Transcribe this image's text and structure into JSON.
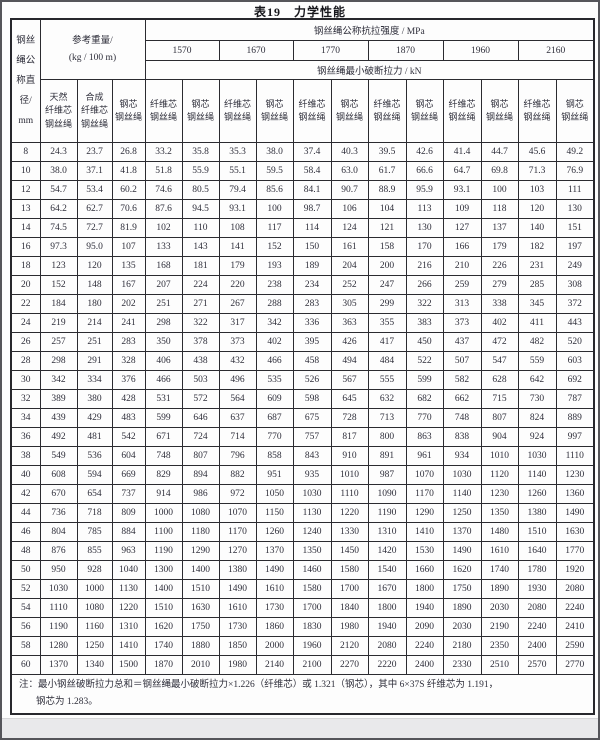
{
  "title": "表19　力学性能",
  "colors": {
    "page_background": "#fdfdfd",
    "table_border": "#2b2b30",
    "text": "#2e2e3a",
    "bottom_strip": "#e9e9eb"
  },
  "table": {
    "diameter_header": "钢丝\n绳公\n称直\n径/\nmm",
    "weight_header": "参考重量/\n(kg / 100 m)",
    "strength_header": "钢丝绳公称抗拉强度 / MPa",
    "force_header": "钢丝绳最小破断拉力 / kN",
    "grades": [
      "1570",
      "1670",
      "1770",
      "1870",
      "1960",
      "2160"
    ],
    "sub_headers": {
      "natural": "天然\n纤维芯\n钢丝绳",
      "synthetic": "合成\n纤维芯\n钢丝绳",
      "steel_weight": "钢芯\n钢丝绳",
      "fiber_core": "纤维芯\n钢丝绳",
      "steel_core": "钢芯\n钢丝绳"
    },
    "rows": [
      {
        "diameter": "8",
        "values": [
          "24.3",
          "23.7",
          "26.8",
          "33.2",
          "35.8",
          "35.3",
          "38.0",
          "37.4",
          "40.3",
          "39.5",
          "42.6",
          "41.4",
          "44.7",
          "45.6",
          "49.2"
        ]
      },
      {
        "diameter": "10",
        "values": [
          "38.0",
          "37.1",
          "41.8",
          "51.8",
          "55.9",
          "55.1",
          "59.5",
          "58.4",
          "63.0",
          "61.7",
          "66.6",
          "64.7",
          "69.8",
          "71.3",
          "76.9"
        ]
      },
      {
        "diameter": "12",
        "values": [
          "54.7",
          "53.4",
          "60.2",
          "74.6",
          "80.5",
          "79.4",
          "85.6",
          "84.1",
          "90.7",
          "88.9",
          "95.9",
          "93.1",
          "100",
          "103",
          "111"
        ]
      },
      {
        "diameter": "13",
        "values": [
          "64.2",
          "62.7",
          "70.6",
          "87.6",
          "94.5",
          "93.1",
          "100",
          "98.7",
          "106",
          "104",
          "113",
          "109",
          "118",
          "120",
          "130"
        ]
      },
      {
        "diameter": "14",
        "values": [
          "74.5",
          "72.7",
          "81.9",
          "102",
          "110",
          "108",
          "117",
          "114",
          "124",
          "121",
          "130",
          "127",
          "137",
          "140",
          "151"
        ]
      },
      {
        "diameter": "16",
        "values": [
          "97.3",
          "95.0",
          "107",
          "133",
          "143",
          "141",
          "152",
          "150",
          "161",
          "158",
          "170",
          "166",
          "179",
          "182",
          "197"
        ]
      },
      {
        "diameter": "18",
        "values": [
          "123",
          "120",
          "135",
          "168",
          "181",
          "179",
          "193",
          "189",
          "204",
          "200",
          "216",
          "210",
          "226",
          "231",
          "249"
        ]
      },
      {
        "diameter": "20",
        "values": [
          "152",
          "148",
          "167",
          "207",
          "224",
          "220",
          "238",
          "234",
          "252",
          "247",
          "266",
          "259",
          "279",
          "285",
          "308"
        ]
      },
      {
        "diameter": "22",
        "values": [
          "184",
          "180",
          "202",
          "251",
          "271",
          "267",
          "288",
          "283",
          "305",
          "299",
          "322",
          "313",
          "338",
          "345",
          "372"
        ]
      },
      {
        "diameter": "24",
        "values": [
          "219",
          "214",
          "241",
          "298",
          "322",
          "317",
          "342",
          "336",
          "363",
          "355",
          "383",
          "373",
          "402",
          "411",
          "443"
        ]
      },
      {
        "diameter": "26",
        "values": [
          "257",
          "251",
          "283",
          "350",
          "378",
          "373",
          "402",
          "395",
          "426",
          "417",
          "450",
          "437",
          "472",
          "482",
          "520"
        ]
      },
      {
        "diameter": "28",
        "values": [
          "298",
          "291",
          "328",
          "406",
          "438",
          "432",
          "466",
          "458",
          "494",
          "484",
          "522",
          "507",
          "547",
          "559",
          "603"
        ]
      },
      {
        "diameter": "30",
        "values": [
          "342",
          "334",
          "376",
          "466",
          "503",
          "496",
          "535",
          "526",
          "567",
          "555",
          "599",
          "582",
          "628",
          "642",
          "692"
        ]
      },
      {
        "diameter": "32",
        "values": [
          "389",
          "380",
          "428",
          "531",
          "572",
          "564",
          "609",
          "598",
          "645",
          "632",
          "682",
          "662",
          "715",
          "730",
          "787"
        ]
      },
      {
        "diameter": "34",
        "values": [
          "439",
          "429",
          "483",
          "599",
          "646",
          "637",
          "687",
          "675",
          "728",
          "713",
          "770",
          "748",
          "807",
          "824",
          "889"
        ]
      },
      {
        "diameter": "36",
        "values": [
          "492",
          "481",
          "542",
          "671",
          "724",
          "714",
          "770",
          "757",
          "817",
          "800",
          "863",
          "838",
          "904",
          "924",
          "997"
        ]
      },
      {
        "diameter": "38",
        "values": [
          "549",
          "536",
          "604",
          "748",
          "807",
          "796",
          "858",
          "843",
          "910",
          "891",
          "961",
          "934",
          "1010",
          "1030",
          "1110"
        ]
      },
      {
        "diameter": "40",
        "values": [
          "608",
          "594",
          "669",
          "829",
          "894",
          "882",
          "951",
          "935",
          "1010",
          "987",
          "1070",
          "1030",
          "1120",
          "1140",
          "1230"
        ]
      },
      {
        "diameter": "42",
        "values": [
          "670",
          "654",
          "737",
          "914",
          "986",
          "972",
          "1050",
          "1030",
          "1110",
          "1090",
          "1170",
          "1140",
          "1230",
          "1260",
          "1360"
        ]
      },
      {
        "diameter": "44",
        "values": [
          "736",
          "718",
          "809",
          "1000",
          "1080",
          "1070",
          "1150",
          "1130",
          "1220",
          "1190",
          "1290",
          "1250",
          "1350",
          "1380",
          "1490"
        ]
      },
      {
        "diameter": "46",
        "values": [
          "804",
          "785",
          "884",
          "1100",
          "1180",
          "1170",
          "1260",
          "1240",
          "1330",
          "1310",
          "1410",
          "1370",
          "1480",
          "1510",
          "1630"
        ]
      },
      {
        "diameter": "48",
        "values": [
          "876",
          "855",
          "963",
          "1190",
          "1290",
          "1270",
          "1370",
          "1350",
          "1450",
          "1420",
          "1530",
          "1490",
          "1610",
          "1640",
          "1770"
        ]
      },
      {
        "diameter": "50",
        "values": [
          "950",
          "928",
          "1040",
          "1300",
          "1400",
          "1380",
          "1490",
          "1460",
          "1580",
          "1540",
          "1660",
          "1620",
          "1740",
          "1780",
          "1920"
        ]
      },
      {
        "diameter": "52",
        "values": [
          "1030",
          "1000",
          "1130",
          "1400",
          "1510",
          "1490",
          "1610",
          "1580",
          "1700",
          "1670",
          "1800",
          "1750",
          "1890",
          "1930",
          "2080"
        ]
      },
      {
        "diameter": "54",
        "values": [
          "1110",
          "1080",
          "1220",
          "1510",
          "1630",
          "1610",
          "1730",
          "1700",
          "1840",
          "1800",
          "1940",
          "1890",
          "2030",
          "2080",
          "2240"
        ]
      },
      {
        "diameter": "56",
        "values": [
          "1190",
          "1160",
          "1310",
          "1620",
          "1750",
          "1730",
          "1860",
          "1830",
          "1980",
          "1940",
          "2090",
          "2030",
          "2190",
          "2240",
          "2410"
        ]
      },
      {
        "diameter": "58",
        "values": [
          "1280",
          "1250",
          "1410",
          "1740",
          "1880",
          "1850",
          "2000",
          "1960",
          "2120",
          "2080",
          "2240",
          "2180",
          "2350",
          "2400",
          "2590"
        ]
      },
      {
        "diameter": "60",
        "values": [
          "1370",
          "1340",
          "1500",
          "1870",
          "2010",
          "1980",
          "2140",
          "2100",
          "2270",
          "2220",
          "2400",
          "2330",
          "2510",
          "2570",
          "2770"
        ]
      }
    ],
    "note_line1": "注：最小钢丝破断拉力总和＝钢丝绳最小破断拉力×1.226（纤维芯）或 1.321（钢芯），其中 6×37S 纤维芯为 1.191，",
    "note_line2": "钢芯为 1.283。"
  }
}
